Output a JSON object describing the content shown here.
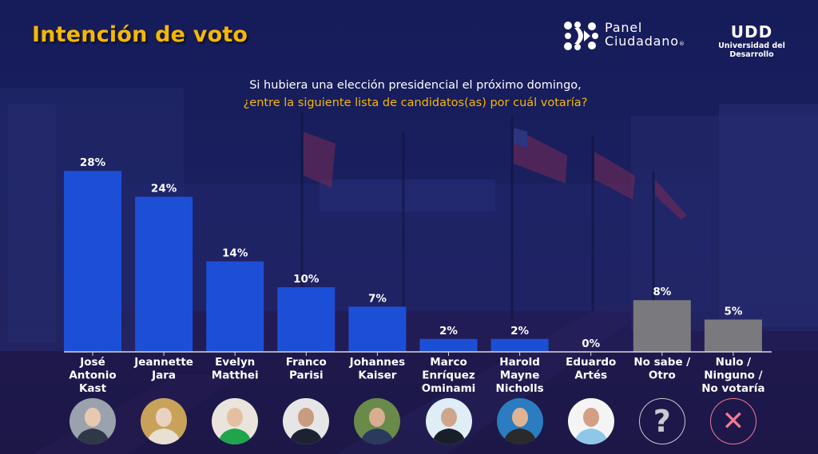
{
  "header": {
    "title": "Intención de voto",
    "brand_panel_line1": "Panel",
    "brand_panel_line2": "Ciudadano",
    "brand_panel_reg": "®",
    "brand_udd_mark": "UDD",
    "brand_udd_name": "Universidad del Desarrollo"
  },
  "question": {
    "line1": "Si hubiera una elección presidencial el próximo domingo,",
    "line2": "¿entre la siguiente lista de candidatos(as) por cuál votaría?"
  },
  "colors": {
    "title": "#f5b800",
    "candidate_bar": "#1d4fd6",
    "other_bar": "#7a7a7e",
    "baseline": "#d8d8e0",
    "question_icon": "#c9c9cf",
    "cross_icon": "#f07a96"
  },
  "chart_data": {
    "type": "bar",
    "title": "Intención de voto",
    "subtitle": "Si hubiera una elección presidencial el próximo domingo, ¿entre la siguiente lista de candidatos(as) por cuál votaría?",
    "xlabel": "",
    "ylabel": "",
    "unit": "%",
    "ylim": [
      0,
      30
    ],
    "grid": false,
    "categories": [
      "José Antonio Kast",
      "Jeannette Jara",
      "Evelyn Matthei",
      "Franco Parisi",
      "Johannes Kaiser",
      "Marco Enríquez Ominami",
      "Harold Mayne Nicholls",
      "Eduardo Artés",
      "No sabe / Otro",
      "Nulo / Ninguno / No votaría"
    ],
    "category_lines": [
      [
        "José",
        "Antonio",
        "Kast"
      ],
      [
        "Jeannette",
        "Jara"
      ],
      [
        "Evelyn",
        "Matthei"
      ],
      [
        "Franco",
        "Parisi"
      ],
      [
        "Johannes",
        "Kaiser"
      ],
      [
        "Marco",
        "Enríquez",
        "Ominami"
      ],
      [
        "Harold",
        "Mayne",
        "Nicholls"
      ],
      [
        "Eduardo",
        "Artés"
      ],
      [
        "No sabe /",
        "Otro"
      ],
      [
        "Nulo /",
        "Ninguno /",
        "No votaría"
      ]
    ],
    "values": [
      28,
      24,
      14,
      10,
      7,
      2,
      2,
      0,
      8,
      5
    ],
    "value_labels": [
      "28%",
      "24%",
      "14%",
      "10%",
      "7%",
      "2%",
      "2%",
      "0%",
      "8%",
      "5%"
    ],
    "bar_kind": [
      "candidate",
      "candidate",
      "candidate",
      "candidate",
      "candidate",
      "candidate",
      "candidate",
      "candidate",
      "other",
      "other"
    ]
  },
  "avatars": [
    {
      "name": "José Antonio Kast",
      "icon": "portrait-photo"
    },
    {
      "name": "Jeannette Jara",
      "icon": "portrait-photo"
    },
    {
      "name": "Evelyn Matthei",
      "icon": "portrait-photo"
    },
    {
      "name": "Franco Parisi",
      "icon": "portrait-photo"
    },
    {
      "name": "Johannes Kaiser",
      "icon": "portrait-photo"
    },
    {
      "name": "Marco Enríquez Ominami",
      "icon": "portrait-photo"
    },
    {
      "name": "Harold Mayne Nicholls",
      "icon": "portrait-photo"
    },
    {
      "name": "Eduardo Artés",
      "icon": "portrait-photo"
    },
    {
      "name": "No sabe / Otro",
      "icon": "question-mark-icon",
      "glyph": "?"
    },
    {
      "name": "Nulo / Ninguno / No votaría",
      "icon": "cross-icon",
      "glyph": "✕"
    }
  ]
}
